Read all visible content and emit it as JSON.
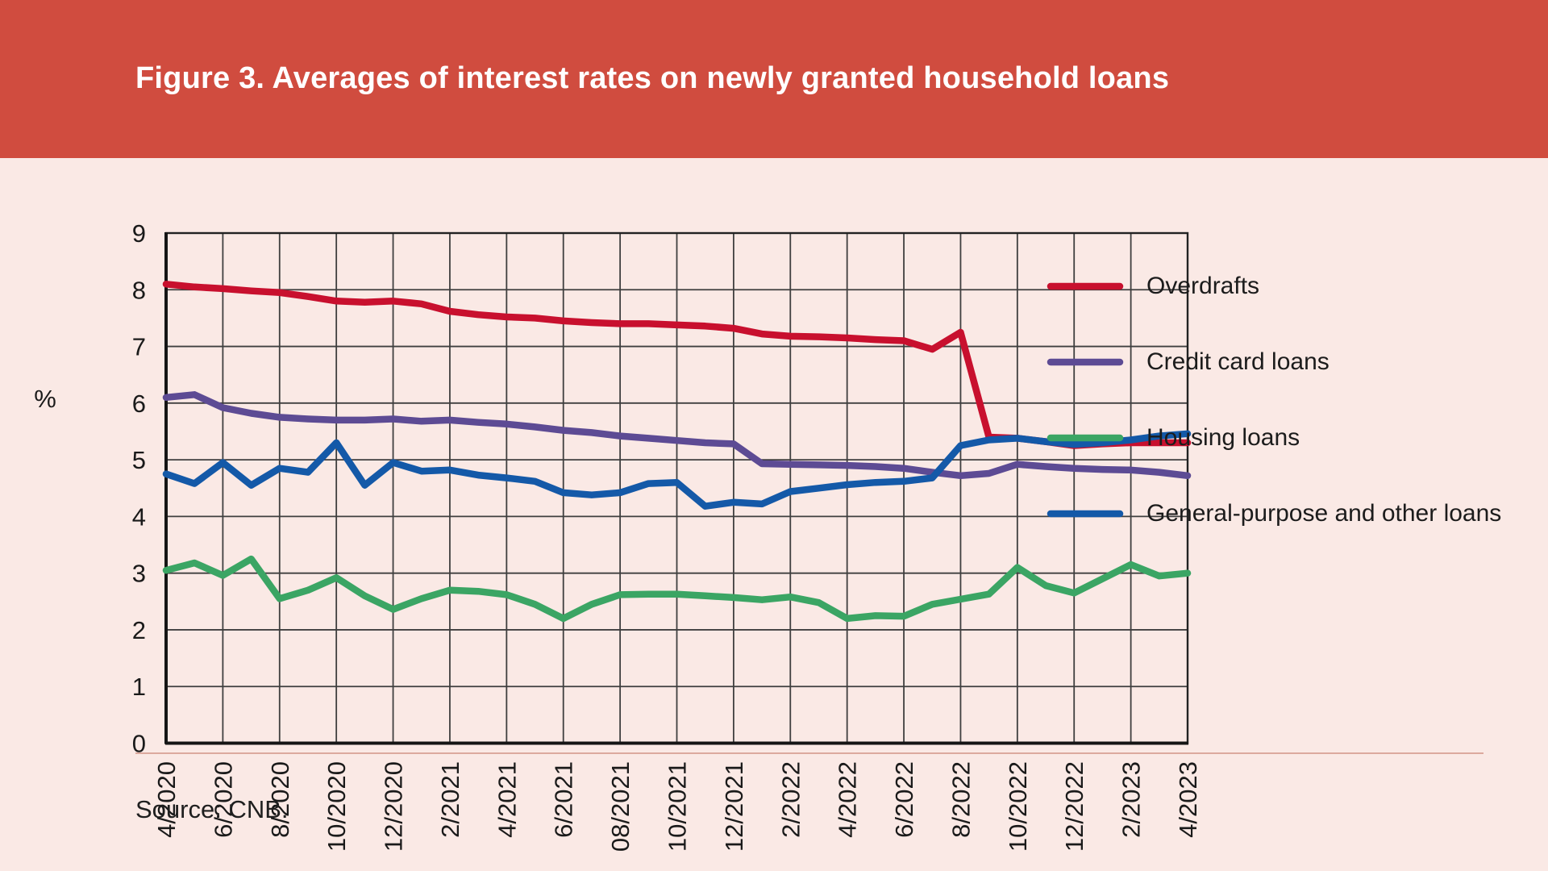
{
  "header": {
    "title": "Figure 3. Averages of interest rates on newly granted household loans",
    "banner_color": "#D04C3F"
  },
  "footer": {
    "source": "Source: CNB.",
    "separator_color": "#dca99e"
  },
  "colors": {
    "background": "#FAE9E5",
    "grid": "#3f3f3f",
    "axis": "#151515",
    "tick_text": "#1a1a1a"
  },
  "chart_data": {
    "type": "line",
    "title": "Figure 3. Averages of interest rates on newly granted household loans",
    "ylabel": "%",
    "ylim": [
      0,
      9
    ],
    "yticks": [
      0,
      1,
      2,
      3,
      4,
      5,
      6,
      7,
      8,
      9
    ],
    "grid": true,
    "legend_position": "right",
    "x_frequency": "monthly",
    "x_range": [
      "4/2020",
      "4/2023"
    ],
    "x_tick_labels": [
      "4/2020",
      "6/2020",
      "8/2020",
      "10/2020",
      "12/2020",
      "2/2021",
      "4/2021",
      "6/2021",
      "08/2021",
      "10/2021",
      "12/2021",
      "2/2022",
      "4/2022",
      "6/2022",
      "8/2022",
      "10/2022",
      "12/2022",
      "2/2023",
      "4/2023"
    ],
    "series": [
      {
        "name": "Overdrafts",
        "color": "#C8102E",
        "values": [
          8.1,
          8.05,
          8.02,
          7.98,
          7.95,
          7.88,
          7.8,
          7.78,
          7.8,
          7.75,
          7.62,
          7.56,
          7.52,
          7.5,
          7.45,
          7.42,
          7.4,
          7.4,
          7.38,
          7.36,
          7.32,
          7.22,
          7.18,
          7.17,
          7.15,
          7.12,
          7.1,
          6.95,
          7.25,
          5.4,
          5.38,
          5.32,
          5.25,
          5.28,
          5.3,
          5.3,
          5.3
        ]
      },
      {
        "name": "Credit card loans",
        "color": "#5D4B94",
        "values": [
          6.1,
          6.15,
          5.92,
          5.82,
          5.75,
          5.72,
          5.7,
          5.7,
          5.72,
          5.68,
          5.7,
          5.66,
          5.63,
          5.58,
          5.52,
          5.48,
          5.42,
          5.38,
          5.34,
          5.3,
          5.28,
          4.93,
          4.92,
          4.91,
          4.9,
          4.88,
          4.85,
          4.78,
          4.72,
          4.76,
          4.92,
          4.88,
          4.85,
          4.83,
          4.82,
          4.78,
          4.72
        ]
      },
      {
        "name": "Housing loans",
        "color": "#3BA564",
        "values": [
          3.05,
          3.18,
          2.96,
          3.25,
          2.55,
          2.7,
          2.92,
          2.6,
          2.36,
          2.55,
          2.7,
          2.68,
          2.62,
          2.45,
          2.2,
          2.45,
          2.62,
          2.63,
          2.63,
          2.6,
          2.57,
          2.53,
          2.58,
          2.48,
          2.2,
          2.25,
          2.24,
          2.45,
          2.54,
          2.63,
          3.1,
          2.78,
          2.65,
          2.9,
          3.15,
          2.95,
          3.0
        ]
      },
      {
        "name": "General-purpose and other loans",
        "color": "#1459A8",
        "values": [
          4.75,
          4.58,
          4.95,
          4.55,
          4.85,
          4.78,
          5.3,
          4.55,
          4.95,
          4.8,
          4.82,
          4.73,
          4.68,
          4.62,
          4.42,
          4.38,
          4.42,
          4.58,
          4.6,
          4.18,
          4.25,
          4.22,
          4.44,
          4.5,
          4.56,
          4.6,
          4.62,
          4.68,
          5.25,
          5.35,
          5.38,
          5.32,
          5.27,
          5.3,
          5.35,
          5.42,
          5.46
        ]
      }
    ]
  }
}
